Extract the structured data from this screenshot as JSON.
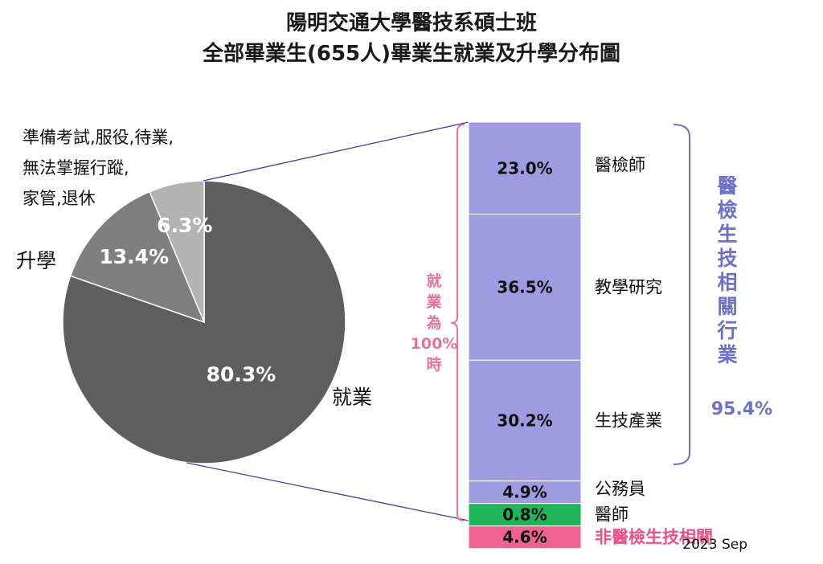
{
  "title_line1": "陽明交通大學醫技系碩士班",
  "title_line2": "全部畢業生(655人)畢業生就業及升學分布圖",
  "footnote": "2023 Sep",
  "colors": {
    "employed": "#5e5e5e",
    "further_study": "#b3b3b3",
    "other": "#7f7f7f",
    "bar_related": "#9d9ce0",
    "bar_physician": "#1fb457",
    "bar_unrelated": "#f06292",
    "purple_text": "#6d72c8",
    "pink_text": "#e8528a"
  },
  "chart_data": [
    {
      "type": "pie",
      "slices": [
        {
          "name": "就業",
          "value": 80.3,
          "label": "80.3%"
        },
        {
          "name": "準備考試,服役,待業,無法掌握行蹤,家管,退休",
          "value": 13.4,
          "label": "13.4%"
        },
        {
          "name": "升學",
          "value": 6.3,
          "label": "6.3%"
        }
      ],
      "slice_labels": {
        "employed": "就業",
        "further_study": "升學",
        "other_lines": [
          "準備考試,服役,待業,",
          "無法掌握行蹤,",
          "家管,退休"
        ]
      }
    },
    {
      "type": "bar",
      "stacked": true,
      "segments": [
        {
          "name": "醫檢師",
          "value": 23.0,
          "label": "23.0%"
        },
        {
          "name": "教學研究",
          "value": 36.5,
          "label": "36.5%"
        },
        {
          "name": "生技產業",
          "value": 30.2,
          "label": "30.2%"
        },
        {
          "name": "公務員",
          "value": 4.9,
          "label": "4.9%"
        },
        {
          "name": "醫師",
          "value": 0.8,
          "label": "0.8%"
        },
        {
          "name": "非醫檢生技相關",
          "value": 4.6,
          "label": "4.6%"
        }
      ],
      "bracket_note": "就業為100%時",
      "bracket_note_chars": [
        "就",
        "業",
        "為",
        "100%",
        "時"
      ],
      "related_group": {
        "label": "醫檢生技相關行業",
        "label_chars": [
          "醫",
          "檢",
          "生",
          "技",
          "相",
          "關",
          "行",
          "業"
        ],
        "value": 95.4,
        "value_label": "95.4%"
      }
    }
  ]
}
